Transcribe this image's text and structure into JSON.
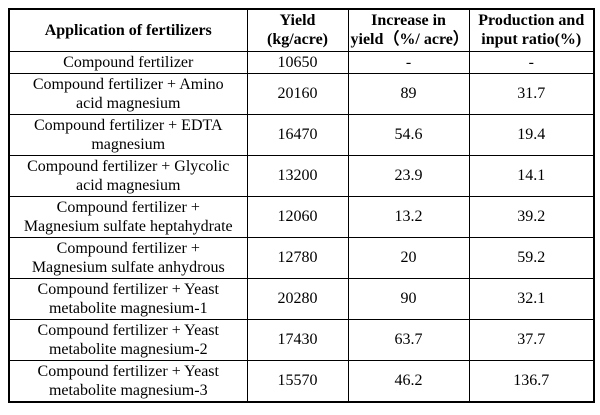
{
  "colors": {
    "background": "#ffffff",
    "border": "#000000",
    "text": "#000000"
  },
  "table": {
    "columns": [
      {
        "id": "application",
        "label": "Application of fertilizers"
      },
      {
        "id": "yield",
        "label": "Yield\n(kg/acre)"
      },
      {
        "id": "increase",
        "label": "Increase in\nyield（%/ acre）"
      },
      {
        "id": "ratio",
        "label": "Production and\ninput ratio(%)"
      }
    ],
    "rows": [
      {
        "application": "Compound fertilizer",
        "yield": "10650",
        "increase": "-",
        "ratio": "-",
        "single_line": true
      },
      {
        "application": "Compound fertilizer + Amino\nacid magnesium",
        "yield": "20160",
        "increase": "89",
        "ratio": "31.7",
        "single_line": false
      },
      {
        "application": "Compound fertilizer + EDTA\nmagnesium",
        "yield": "16470",
        "increase": "54.6",
        "ratio": "19.4",
        "single_line": false
      },
      {
        "application": "Compound fertilizer + Glycolic\nacid magnesium",
        "yield": "13200",
        "increase": "23.9",
        "ratio": "14.1",
        "single_line": false
      },
      {
        "application": "Compound fertilizer +\nMagnesium sulfate heptahydrate",
        "yield": "12060",
        "increase": "13.2",
        "ratio": "39.2",
        "single_line": false
      },
      {
        "application": "Compound fertilizer +\nMagnesium sulfate anhydrous",
        "yield": "12780",
        "increase": "20",
        "ratio": "59.2",
        "single_line": false
      },
      {
        "application": "Compound fertilizer + Yeast\nmetabolite magnesium-1",
        "yield": "20280",
        "increase": "90",
        "ratio": "32.1",
        "single_line": false
      },
      {
        "application": "Compound fertilizer + Yeast\nmetabolite magnesium-2",
        "yield": "17430",
        "increase": "63.7",
        "ratio": "37.7",
        "single_line": false
      },
      {
        "application": "Compound fertilizer + Yeast\nmetabolite magnesium-3",
        "yield": "15570",
        "increase": "46.2",
        "ratio": "136.7",
        "single_line": false
      }
    ]
  }
}
